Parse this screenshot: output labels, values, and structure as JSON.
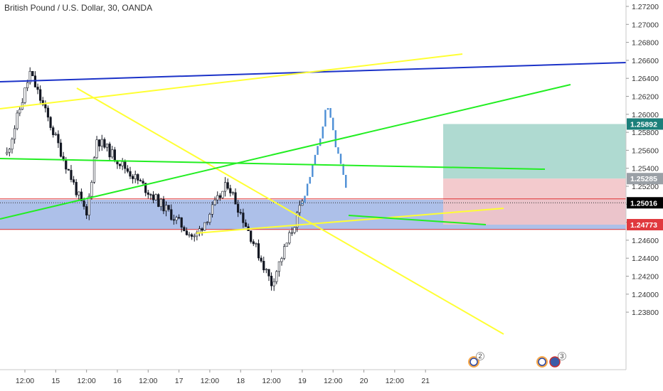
{
  "header": {
    "title": "British Pound / U.S. Dollar, 30, OANDA"
  },
  "colors": {
    "background": "#ffffff",
    "candle": "#131722",
    "projection": "#4d8fd6",
    "yellow_line": "#ffff33",
    "green_line": "#22ee22",
    "blue_line": "#1b32c8",
    "blue_zone": "#a9bde8",
    "target_zone": "#a6d6cc",
    "stop_zone": "#f2c4c8",
    "hline_red": "#e03030",
    "target_badge": "#1b7f7a",
    "stop_badge": "#e0393e",
    "current_badge": "#000000"
  },
  "chart_data": {
    "type": "candlestick",
    "symbol": "British Pound / U.S. Dollar",
    "interval": "30",
    "source": "OANDA",
    "y_ticks": [
      1.272,
      1.27,
      1.268,
      1.266,
      1.264,
      1.262,
      1.26,
      1.258,
      1.256,
      1.254,
      1.252,
      1.25,
      1.248,
      1.246,
      1.244,
      1.242,
      1.24,
      1.238
    ],
    "y_tick_labels": [
      "1.27200",
      "1.27000",
      "1.26800",
      "1.26600",
      "1.26400",
      "1.26200",
      "1.26000",
      "1.25800",
      "1.25600",
      "1.25400",
      "1.25200",
      "1.25000",
      "1.24800",
      "1.24600",
      "1.24400",
      "1.24200",
      "1.24000",
      "1.23800"
    ],
    "price_badges": [
      {
        "label": "1.25892",
        "kind": "target"
      },
      {
        "label": "1.25285",
        "kind": "entry"
      },
      {
        "label": "1.25016",
        "kind": "current"
      },
      {
        "label": "1.24773",
        "kind": "stop"
      }
    ],
    "x_ticks": [
      "12:00",
      "15",
      "12:00",
      "16",
      "12:00",
      "17",
      "12:00",
      "18",
      "12:00",
      "19",
      "12:00",
      "20",
      "12:00",
      "21"
    ],
    "event_badges": [
      {
        "count": "2"
      },
      {
        "count": "3"
      }
    ],
    "support_zone": {
      "top": 1.2505,
      "bottom": 1.2472
    },
    "position": {
      "target": 1.25892,
      "entry": 1.25285,
      "stop": 1.24773
    },
    "key_points": [
      {
        "time": "Jun 14 05:00",
        "price": 1.2556,
        "note": "start"
      },
      {
        "time": "Jun 14 14:00",
        "price": 1.2646,
        "note": "high"
      },
      {
        "time": "Jun 15 12:00",
        "price": 1.2486,
        "note": "low"
      },
      {
        "time": "Jun 15 16:00",
        "price": 1.2573,
        "note": "rebound"
      },
      {
        "time": "Jun 17 06:00",
        "price": 1.2462,
        "note": "low"
      },
      {
        "time": "Jun 17 19:00",
        "price": 1.2523,
        "note": "high"
      },
      {
        "time": "Jun 18 12:00",
        "price": 1.2412,
        "note": "low"
      },
      {
        "time": "Jun 19 00:00",
        "price": 1.2501,
        "note": "last close"
      }
    ],
    "projection_points": [
      {
        "time": "Jun 19 00:00",
        "price": 1.2501
      },
      {
        "time": "Jun 19 08:00",
        "price": 1.2586
      },
      {
        "time": "Jun 19 09:30",
        "price": 1.2616
      },
      {
        "time": "Jun 19 13:00",
        "price": 1.2565
      },
      {
        "time": "Jun 19 17:00",
        "price": 1.2521
      }
    ]
  }
}
